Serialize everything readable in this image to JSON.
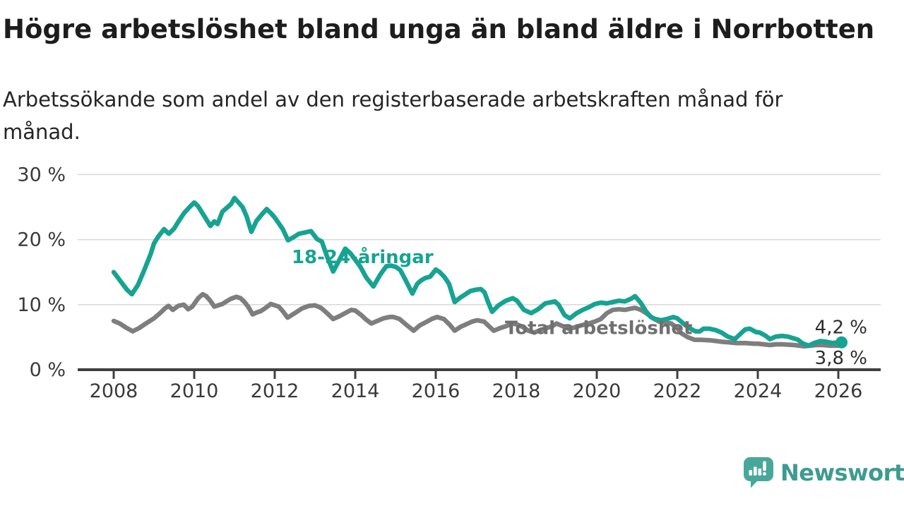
{
  "title": "Högre arbetslöshet bland unga än bland äldre i Norrbotten",
  "subtitle": "Arbetssökande som andel av den registerbaserade arbetskraften månad för månad.",
  "branding": {
    "logo_text": "Newsworthy",
    "logo_color": "#48a79b",
    "wordmark_color": "#3d9b90"
  },
  "chart_data": {
    "type": "line",
    "title": "Högre arbetslöshet bland unga än bland äldre i Norrbotten",
    "xlabel": "",
    "ylabel": "",
    "unit": "%",
    "grid": "horizontal",
    "legend_position": "inline-labels",
    "x_axis": {
      "range": [
        2007.1,
        2027.05
      ],
      "ticks": [
        2008,
        2010,
        2012,
        2014,
        2016,
        2018,
        2020,
        2022,
        2024,
        2026
      ]
    },
    "y_axis": {
      "range": [
        0,
        32.5
      ],
      "ticks": [
        {
          "value": 0,
          "label": "0 %"
        },
        {
          "value": 10,
          "label": "10 %"
        },
        {
          "value": 20,
          "label": "20 %"
        },
        {
          "value": 30,
          "label": "30 %"
        }
      ]
    },
    "series": [
      {
        "name": "Total arbetslöshet",
        "color": "#7e7e7e",
        "label_color": "#6f6f6f",
        "stroke_width": 6.5,
        "end_dot": false,
        "end_label": "3,8 %",
        "end_label_dy": 27,
        "label": {
          "text": "Total arbetslöshet",
          "x": 2017.72,
          "y": 5.5
        },
        "points": [
          [
            2008.0,
            7.5
          ],
          [
            2008.15,
            7.1
          ],
          [
            2008.3,
            6.5
          ],
          [
            2008.47,
            5.9
          ],
          [
            2008.63,
            6.4
          ],
          [
            2008.8,
            7.1
          ],
          [
            2009.0,
            7.9
          ],
          [
            2009.15,
            8.7
          ],
          [
            2009.27,
            9.4
          ],
          [
            2009.36,
            9.8
          ],
          [
            2009.47,
            9.2
          ],
          [
            2009.6,
            9.8
          ],
          [
            2009.74,
            10.0
          ],
          [
            2009.85,
            9.3
          ],
          [
            2009.95,
            9.7
          ],
          [
            2010.1,
            11.0
          ],
          [
            2010.21,
            11.6
          ],
          [
            2010.3,
            11.3
          ],
          [
            2010.4,
            10.6
          ],
          [
            2010.5,
            9.7
          ],
          [
            2010.6,
            9.9
          ],
          [
            2010.7,
            10.1
          ],
          [
            2010.8,
            10.5
          ],
          [
            2010.91,
            10.9
          ],
          [
            2011.05,
            11.2
          ],
          [
            2011.15,
            11.0
          ],
          [
            2011.25,
            10.4
          ],
          [
            2011.35,
            9.6
          ],
          [
            2011.45,
            8.5
          ],
          [
            2011.55,
            8.8
          ],
          [
            2011.65,
            9.0
          ],
          [
            2011.75,
            9.4
          ],
          [
            2011.9,
            10.1
          ],
          [
            2012.0,
            9.9
          ],
          [
            2012.1,
            9.7
          ],
          [
            2012.2,
            9.0
          ],
          [
            2012.32,
            8.0
          ],
          [
            2012.5,
            8.7
          ],
          [
            2012.67,
            9.4
          ],
          [
            2012.85,
            9.8
          ],
          [
            2013.0,
            9.9
          ],
          [
            2013.15,
            9.5
          ],
          [
            2013.3,
            8.7
          ],
          [
            2013.45,
            7.8
          ],
          [
            2013.6,
            8.2
          ],
          [
            2013.75,
            8.7
          ],
          [
            2013.9,
            9.2
          ],
          [
            2014.0,
            9.1
          ],
          [
            2014.15,
            8.4
          ],
          [
            2014.27,
            7.7
          ],
          [
            2014.4,
            7.1
          ],
          [
            2014.55,
            7.5
          ],
          [
            2014.7,
            7.9
          ],
          [
            2014.85,
            8.1
          ],
          [
            2014.95,
            8.1
          ],
          [
            2015.1,
            7.8
          ],
          [
            2015.25,
            7.0
          ],
          [
            2015.45,
            6.0
          ],
          [
            2015.6,
            6.8
          ],
          [
            2015.75,
            7.3
          ],
          [
            2015.9,
            7.8
          ],
          [
            2016.03,
            8.1
          ],
          [
            2016.2,
            7.8
          ],
          [
            2016.35,
            6.9
          ],
          [
            2016.47,
            6.0
          ],
          [
            2016.62,
            6.6
          ],
          [
            2016.8,
            7.1
          ],
          [
            2016.9,
            7.4
          ],
          [
            2017.03,
            7.6
          ],
          [
            2017.2,
            7.4
          ],
          [
            2017.32,
            6.7
          ],
          [
            2017.44,
            6.0
          ],
          [
            2017.6,
            6.4
          ],
          [
            2017.75,
            6.7
          ],
          [
            2017.9,
            7.1
          ],
          [
            2018.0,
            7.0
          ],
          [
            2018.15,
            6.6
          ],
          [
            2018.3,
            6.0
          ],
          [
            2018.45,
            5.7
          ],
          [
            2018.6,
            6.1
          ],
          [
            2018.75,
            6.4
          ],
          [
            2018.9,
            6.7
          ],
          [
            2019.0,
            7.1
          ],
          [
            2019.15,
            6.7
          ],
          [
            2019.3,
            6.3
          ],
          [
            2019.45,
            6.5
          ],
          [
            2019.6,
            6.8
          ],
          [
            2019.8,
            7.1
          ],
          [
            2019.95,
            7.4
          ],
          [
            2020.1,
            7.8
          ],
          [
            2020.25,
            8.7
          ],
          [
            2020.4,
            9.2
          ],
          [
            2020.55,
            9.3
          ],
          [
            2020.7,
            9.2
          ],
          [
            2020.85,
            9.4
          ],
          [
            2020.95,
            9.5
          ],
          [
            2021.1,
            9.2
          ],
          [
            2021.25,
            8.6
          ],
          [
            2021.4,
            7.9
          ],
          [
            2021.55,
            7.4
          ],
          [
            2021.7,
            7.2
          ],
          [
            2021.85,
            7.1
          ],
          [
            2022.0,
            6.4
          ],
          [
            2022.1,
            5.6
          ],
          [
            2022.26,
            5.0
          ],
          [
            2022.43,
            4.6
          ],
          [
            2022.6,
            4.6
          ],
          [
            2022.85,
            4.5
          ],
          [
            2023.1,
            4.3
          ],
          [
            2023.3,
            4.2
          ],
          [
            2023.45,
            4.1
          ],
          [
            2023.7,
            4.1
          ],
          [
            2023.9,
            4.0
          ],
          [
            2024.0,
            4.0
          ],
          [
            2024.3,
            3.8
          ],
          [
            2024.45,
            3.9
          ],
          [
            2024.6,
            3.9
          ],
          [
            2024.9,
            3.8
          ],
          [
            2025.15,
            3.6
          ],
          [
            2025.3,
            3.7
          ],
          [
            2025.45,
            3.8
          ],
          [
            2025.6,
            3.8
          ],
          [
            2025.8,
            3.7
          ],
          [
            2026.0,
            3.7
          ],
          [
            2026.1,
            3.8
          ]
        ]
      },
      {
        "name": "18-24-åringar",
        "color": "#17a392",
        "label_color": "#17a392",
        "stroke_width": 6.5,
        "end_dot": true,
        "end_label": "4,2 %",
        "end_label_dy": -13,
        "label": {
          "text": "18-24-åringar",
          "x": 2012.42,
          "y": 16.4
        },
        "points": [
          [
            2008.0,
            15.0
          ],
          [
            2008.17,
            13.6
          ],
          [
            2008.33,
            12.3
          ],
          [
            2008.45,
            11.6
          ],
          [
            2008.6,
            13.0
          ],
          [
            2008.75,
            15.2
          ],
          [
            2008.92,
            17.8
          ],
          [
            2009.0,
            19.4
          ],
          [
            2009.1,
            20.4
          ],
          [
            2009.25,
            21.6
          ],
          [
            2009.37,
            20.9
          ],
          [
            2009.5,
            21.7
          ],
          [
            2009.62,
            22.9
          ],
          [
            2009.75,
            24.1
          ],
          [
            2009.9,
            25.1
          ],
          [
            2010.0,
            25.7
          ],
          [
            2010.1,
            25.1
          ],
          [
            2010.25,
            23.6
          ],
          [
            2010.4,
            22.1
          ],
          [
            2010.5,
            22.8
          ],
          [
            2010.58,
            22.4
          ],
          [
            2010.7,
            24.3
          ],
          [
            2010.83,
            25.0
          ],
          [
            2010.92,
            25.5
          ],
          [
            2011.0,
            26.4
          ],
          [
            2011.1,
            25.7
          ],
          [
            2011.2,
            25.0
          ],
          [
            2011.3,
            23.6
          ],
          [
            2011.42,
            21.2
          ],
          [
            2011.55,
            22.9
          ],
          [
            2011.67,
            23.8
          ],
          [
            2011.8,
            24.7
          ],
          [
            2011.9,
            24.1
          ],
          [
            2012.0,
            23.4
          ],
          [
            2012.1,
            22.5
          ],
          [
            2012.2,
            21.6
          ],
          [
            2012.33,
            19.9
          ],
          [
            2012.45,
            20.3
          ],
          [
            2012.6,
            20.9
          ],
          [
            2012.75,
            21.1
          ],
          [
            2012.9,
            21.3
          ],
          [
            2013.05,
            20.1
          ],
          [
            2013.17,
            19.7
          ],
          [
            2013.3,
            17.4
          ],
          [
            2013.45,
            15.1
          ],
          [
            2013.6,
            16.8
          ],
          [
            2013.75,
            18.6
          ],
          [
            2013.88,
            17.9
          ],
          [
            2014.0,
            16.9
          ],
          [
            2014.13,
            15.8
          ],
          [
            2014.27,
            14.2
          ],
          [
            2014.45,
            12.8
          ],
          [
            2014.62,
            14.6
          ],
          [
            2014.77,
            15.9
          ],
          [
            2014.89,
            16.0
          ],
          [
            2015.01,
            15.8
          ],
          [
            2015.12,
            15.3
          ],
          [
            2015.24,
            13.9
          ],
          [
            2015.42,
            11.7
          ],
          [
            2015.54,
            13.2
          ],
          [
            2015.63,
            13.7
          ],
          [
            2015.74,
            14.1
          ],
          [
            2015.86,
            14.3
          ],
          [
            2016.0,
            15.4
          ],
          [
            2016.1,
            15.0
          ],
          [
            2016.21,
            14.3
          ],
          [
            2016.33,
            13.2
          ],
          [
            2016.47,
            10.4
          ],
          [
            2016.61,
            11.1
          ],
          [
            2016.74,
            11.6
          ],
          [
            2016.86,
            12.1
          ],
          [
            2017.0,
            12.3
          ],
          [
            2017.12,
            12.4
          ],
          [
            2017.21,
            11.9
          ],
          [
            2017.3,
            10.4
          ],
          [
            2017.4,
            8.9
          ],
          [
            2017.56,
            9.9
          ],
          [
            2017.74,
            10.6
          ],
          [
            2017.91,
            11.0
          ],
          [
            2018.02,
            10.6
          ],
          [
            2018.19,
            9.2
          ],
          [
            2018.37,
            8.7
          ],
          [
            2018.54,
            9.3
          ],
          [
            2018.72,
            10.2
          ],
          [
            2018.96,
            10.5
          ],
          [
            2019.05,
            10.0
          ],
          [
            2019.2,
            8.4
          ],
          [
            2019.33,
            7.9
          ],
          [
            2019.5,
            8.7
          ],
          [
            2019.65,
            9.2
          ],
          [
            2019.8,
            9.6
          ],
          [
            2019.95,
            10.1
          ],
          [
            2020.1,
            10.3
          ],
          [
            2020.25,
            10.2
          ],
          [
            2020.4,
            10.4
          ],
          [
            2020.55,
            10.6
          ],
          [
            2020.7,
            10.5
          ],
          [
            2020.85,
            10.9
          ],
          [
            2020.95,
            11.3
          ],
          [
            2021.09,
            10.3
          ],
          [
            2021.22,
            9.0
          ],
          [
            2021.34,
            8.1
          ],
          [
            2021.45,
            7.8
          ],
          [
            2021.6,
            7.6
          ],
          [
            2021.75,
            7.8
          ],
          [
            2021.9,
            8.1
          ],
          [
            2022.0,
            7.9
          ],
          [
            2022.15,
            7.1
          ],
          [
            2022.3,
            6.4
          ],
          [
            2022.45,
            5.9
          ],
          [
            2022.56,
            5.9
          ],
          [
            2022.65,
            6.3
          ],
          [
            2022.8,
            6.3
          ],
          [
            2022.95,
            6.1
          ],
          [
            2023.1,
            5.7
          ],
          [
            2023.25,
            5.1
          ],
          [
            2023.43,
            4.7
          ],
          [
            2023.55,
            5.4
          ],
          [
            2023.69,
            6.2
          ],
          [
            2023.8,
            6.3
          ],
          [
            2023.95,
            5.8
          ],
          [
            2024.05,
            5.7
          ],
          [
            2024.2,
            5.2
          ],
          [
            2024.3,
            4.7
          ],
          [
            2024.45,
            5.1
          ],
          [
            2024.6,
            5.2
          ],
          [
            2024.74,
            5.1
          ],
          [
            2024.9,
            4.8
          ],
          [
            2025.0,
            4.6
          ],
          [
            2025.1,
            4.1
          ],
          [
            2025.26,
            3.7
          ],
          [
            2025.4,
            4.1
          ],
          [
            2025.55,
            4.4
          ],
          [
            2025.7,
            4.3
          ],
          [
            2025.85,
            4.1
          ],
          [
            2026.0,
            4.2
          ],
          [
            2026.08,
            4.2
          ]
        ]
      }
    ],
    "style": {
      "gridline_color": "#d9d9d9",
      "axis_line_color": "#3f3f3f",
      "tick_label_color": "#3a3a3a",
      "end_label_color": "#2e2e2e"
    }
  }
}
